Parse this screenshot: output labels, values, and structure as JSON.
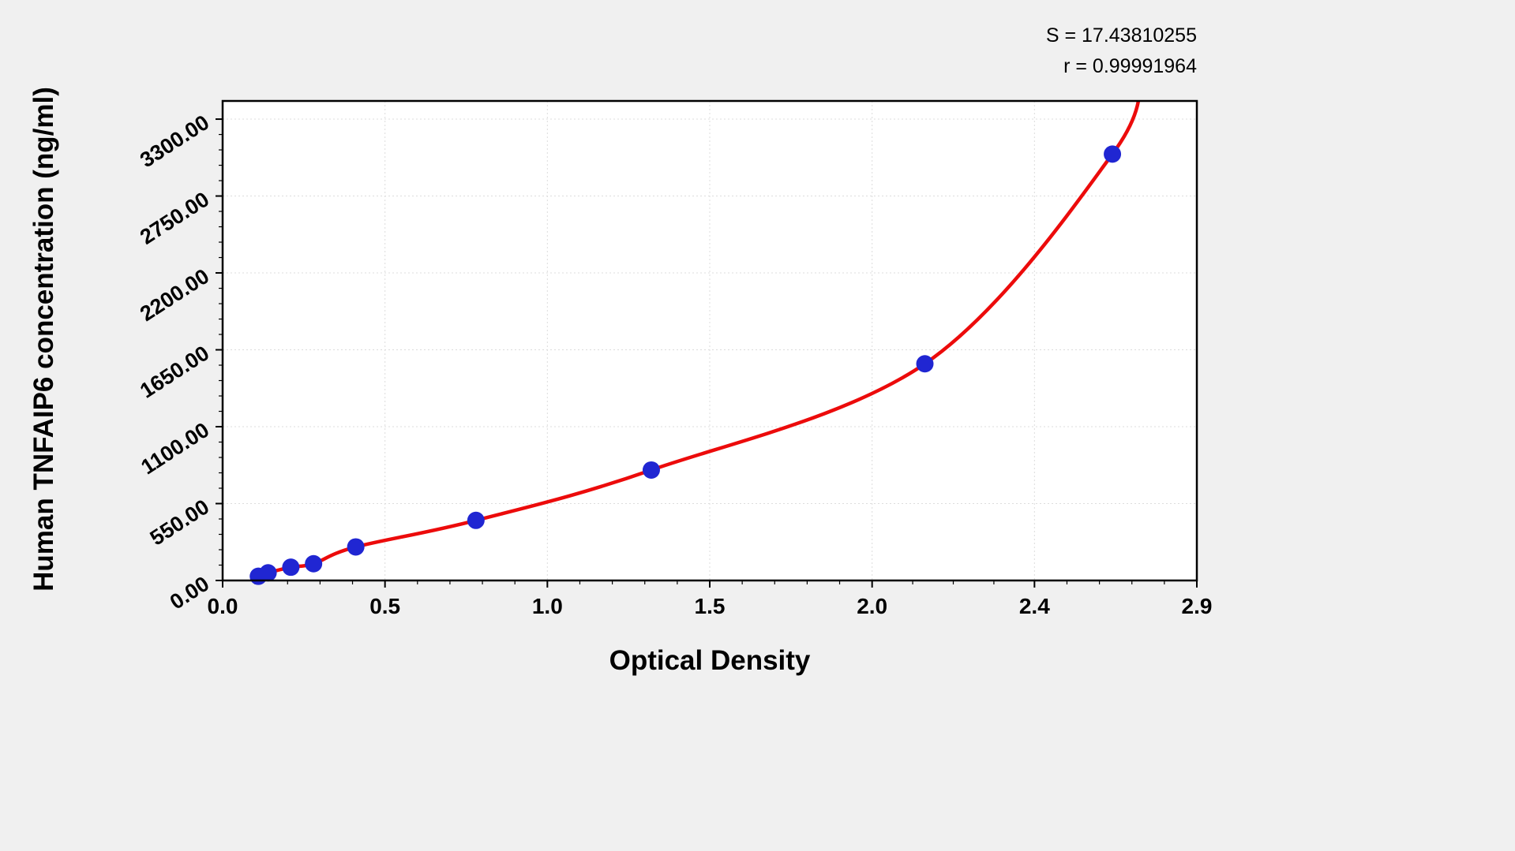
{
  "stats": {
    "s_line": "S = 17.43810255",
    "r_line": "r = 0.99991964"
  },
  "chart_data": {
    "type": "scatter",
    "title": "",
    "xlabel": "Optical Density",
    "ylabel": "Human TNFAIP6 concentration (ng/ml)",
    "x": [
      0.11,
      0.14,
      0.21,
      0.28,
      0.41,
      0.78,
      1.32,
      2.13,
      2.64
    ],
    "y": [
      30,
      55,
      95,
      120,
      240,
      430,
      790,
      1550,
      3050
    ],
    "curve_extend": {
      "x": 2.73,
      "y": 3650
    },
    "x_tick_values": [
      0,
      0.5,
      1.0,
      1.5,
      2.0,
      2.4,
      2.9
    ],
    "x_tick_labels": [
      "0.0",
      "0.5",
      "1.0",
      "1.5",
      "2.0",
      "2.4",
      "2.9"
    ],
    "y_tick_values": [
      0,
      550,
      1100,
      1650,
      2200,
      2750,
      3300
    ],
    "y_tick_labels": [
      "0.00",
      "550.00",
      "1100.00",
      "1650.00",
      "2200.00",
      "2750.00",
      "3300.00"
    ],
    "xlim": [
      0,
      2.9
    ],
    "ylim": [
      0,
      3430
    ],
    "x_minor_step": 0.1,
    "y_minor_step": 110,
    "grid": true,
    "legend": "none",
    "colors": {
      "curve": "#ec0b0b",
      "points": "#2026d2",
      "grid": "#dcdcdc",
      "axis": "#000000",
      "plot_bg": "#ffffff",
      "figure_bg": "#f0f0f0"
    }
  }
}
